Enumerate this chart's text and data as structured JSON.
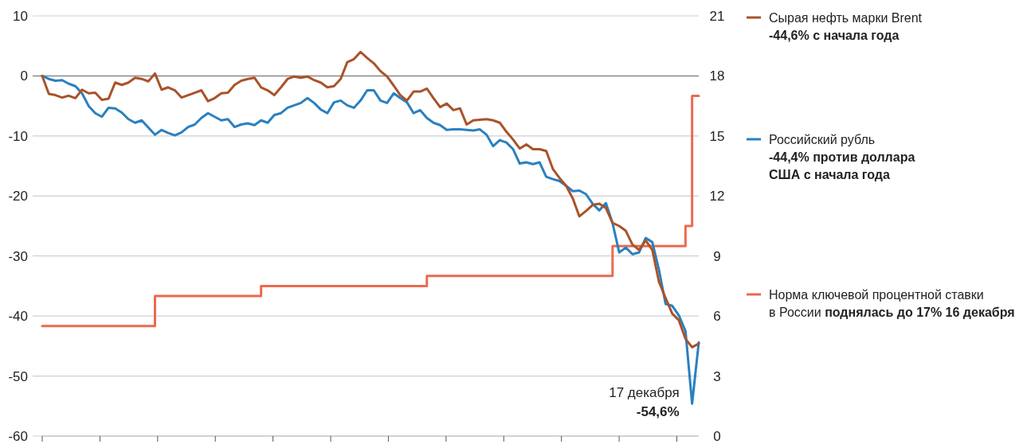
{
  "chart_data": {
    "type": "line",
    "categories": [
      null,
      null,
      null,
      null,
      null,
      null,
      null,
      null,
      null,
      null,
      null,
      null,
      null,
      null,
      null,
      null,
      null,
      null,
      null,
      null,
      null,
      null,
      null,
      null,
      null,
      null,
      null,
      null,
      null,
      null,
      null,
      null,
      null,
      null,
      null,
      null,
      null,
      null,
      null,
      null,
      null,
      null,
      null,
      null,
      null,
      null,
      null,
      null,
      null,
      null,
      null,
      null,
      null,
      null,
      null,
      null,
      null,
      null,
      null,
      null,
      null,
      null,
      null,
      null,
      null,
      null,
      null,
      null,
      null,
      null,
      null,
      null,
      null,
      null,
      null,
      null,
      null,
      null,
      null,
      null,
      null,
      null,
      null,
      null,
      null,
      null,
      null,
      null,
      null,
      null,
      null,
      null,
      null,
      null,
      null,
      null,
      null,
      null,
      null,
      null
    ],
    "series": [
      {
        "name": "Сырая нефть марки Brent",
        "color": "#a9532a",
        "values": [
          0,
          -3.0,
          -3.2,
          -3.6,
          -3.3,
          -3.7,
          -2.3,
          -2.9,
          -2.8,
          -4.0,
          -3.8,
          -1.1,
          -1.5,
          -1.1,
          -0.3,
          -0.5,
          -0.9,
          0.4,
          -2.3,
          -1.9,
          -2.4,
          -3.6,
          -3.2,
          -2.8,
          -2.4,
          -4.2,
          -3.7,
          -2.9,
          -2.8,
          -1.5,
          -0.8,
          -0.5,
          -0.3,
          -1.9,
          -2.4,
          -3.2,
          -1.9,
          -0.5,
          -0.1,
          -0.3,
          -0.1,
          -0.7,
          -1.1,
          -1.9,
          -1.7,
          -0.5,
          2.3,
          2.8,
          4.0,
          3.0,
          2.1,
          0.8,
          -0.1,
          -1.6,
          -3.2,
          -4.1,
          -2.6,
          -2.6,
          -2.1,
          -3.7,
          -5.2,
          -4.6,
          -5.7,
          -5.4,
          -8.1,
          -7.4,
          -7.3,
          -7.2,
          -7.4,
          -7.8,
          -9.3,
          -10.6,
          -12.1,
          -11.4,
          -12.2,
          -12.2,
          -12.5,
          -15.5,
          -17.0,
          -18.3,
          -20.4,
          -23.4,
          -22.5,
          -21.5,
          -21.3,
          -22.0,
          -24.5,
          -25.0,
          -25.8,
          -28.1,
          -29.0,
          -27.4,
          -29.0,
          -34.3,
          -37.0,
          -39.6,
          -40.7,
          -43.8,
          -45.2,
          -44.6
        ]
      },
      {
        "name": "Российский рубль",
        "color": "#2a80c0",
        "values": [
          0,
          -0.5,
          -0.8,
          -0.7,
          -1.3,
          -1.7,
          -2.9,
          -5.0,
          -6.2,
          -6.8,
          -5.3,
          -5.4,
          -6.1,
          -7.2,
          -7.8,
          -7.4,
          -8.6,
          -9.8,
          -9.0,
          -9.5,
          -9.9,
          -9.4,
          -8.5,
          -8.1,
          -7.0,
          -6.2,
          -6.8,
          -7.4,
          -7.2,
          -8.5,
          -8.1,
          -7.9,
          -8.2,
          -7.4,
          -7.8,
          -6.5,
          -6.2,
          -5.3,
          -4.9,
          -4.5,
          -3.7,
          -4.5,
          -5.6,
          -6.2,
          -4.4,
          -4.1,
          -4.9,
          -5.3,
          -4.1,
          -2.4,
          -2.4,
          -4.1,
          -4.5,
          -2.9,
          -3.7,
          -4.4,
          -6.2,
          -5.7,
          -7.0,
          -7.8,
          -8.2,
          -9.0,
          -8.9,
          -8.9,
          -9.0,
          -9.1,
          -8.9,
          -9.8,
          -11.7,
          -10.7,
          -11.1,
          -12.2,
          -14.6,
          -14.4,
          -14.7,
          -14.4,
          -16.8,
          -17.2,
          -17.5,
          -18.3,
          -19.2,
          -19.1,
          -19.7,
          -21.3,
          -22.4,
          -21.2,
          -24.5,
          -29.4,
          -28.6,
          -29.7,
          -29.4,
          -27.0,
          -27.7,
          -32.3,
          -38.0,
          -38.3,
          -39.9,
          -42.5,
          -54.6,
          -44.4
        ]
      },
      {
        "name": "Норма ключевой процентной ставки\nв России",
        "type": "step",
        "axis": "y2",
        "color": "#ec6a4e",
        "values": [
          5.5,
          5.5,
          5.5,
          5.5,
          5.5,
          5.5,
          5.5,
          5.5,
          5.5,
          5.5,
          5.5,
          5.5,
          5.5,
          5.5,
          5.5,
          5.5,
          5.5,
          7.0,
          7.0,
          7.0,
          7.0,
          7.0,
          7.0,
          7.0,
          7.0,
          7.0,
          7.0,
          7.0,
          7.0,
          7.0,
          7.0,
          7.0,
          7.0,
          7.5,
          7.5,
          7.5,
          7.5,
          7.5,
          7.5,
          7.5,
          7.5,
          7.5,
          7.5,
          7.5,
          7.5,
          7.5,
          7.5,
          7.5,
          7.5,
          7.5,
          7.5,
          7.5,
          7.5,
          7.5,
          7.5,
          7.5,
          7.5,
          7.5,
          8.0,
          8.0,
          8.0,
          8.0,
          8.0,
          8.0,
          8.0,
          8.0,
          8.0,
          8.0,
          8.0,
          8.0,
          8.0,
          8.0,
          8.0,
          8.0,
          8.0,
          8.0,
          8.0,
          8.0,
          8.0,
          8.0,
          8.0,
          8.0,
          8.0,
          8.0,
          8.0,
          8.0,
          9.5,
          9.5,
          9.5,
          9.5,
          9.5,
          9.5,
          9.5,
          9.5,
          9.5,
          9.5,
          9.5,
          10.5,
          17.0,
          17.0
        ]
      }
    ],
    "ylim": [
      -60,
      10
    ],
    "yticks": [
      -60,
      -50,
      -40,
      -30,
      -20,
      -10,
      0,
      10
    ],
    "y2lim": [
      0,
      21
    ],
    "y2ticks": [
      0,
      3,
      6,
      9,
      12,
      15,
      18,
      21
    ],
    "grid": "y",
    "legend": "right",
    "ref_lines": [
      {
        "axis": "y",
        "value": 0,
        "color": "#8c8c8c"
      }
    ],
    "annotations": [
      "-44,6%  с начала года",
      "-44,4% против доллара\nСША  с начала года",
      "поднялась до 17% 16 декабря",
      "17 декабря",
      "-54,6%"
    ]
  }
}
